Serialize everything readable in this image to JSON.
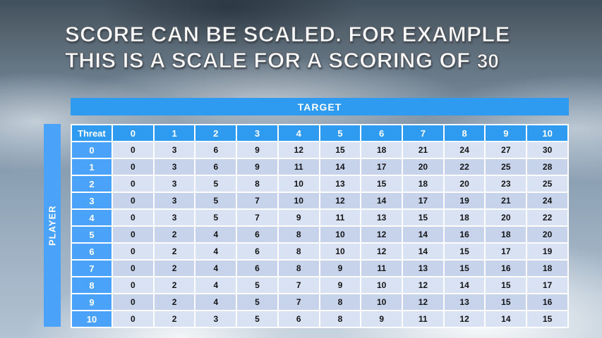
{
  "slide": {
    "title_line1": "SCORE CAN BE SCALED. FOR EXAMPLE",
    "title_line2": "THIS IS A SCALE FOR A SCORING OF",
    "title_number": "30"
  },
  "table": {
    "target_label": "TARGET",
    "player_label": "PLAYER",
    "threat_label": "Threat",
    "column_headers": [
      "0",
      "1",
      "2",
      "3",
      "4",
      "5",
      "6",
      "7",
      "8",
      "9",
      "10"
    ],
    "rows": [
      {
        "threat": "0",
        "values": [
          0,
          3,
          6,
          9,
          12,
          15,
          18,
          21,
          24,
          27,
          30
        ]
      },
      {
        "threat": "1",
        "values": [
          0,
          3,
          6,
          9,
          11,
          14,
          17,
          20,
          22,
          25,
          28
        ]
      },
      {
        "threat": "2",
        "values": [
          0,
          3,
          5,
          8,
          10,
          13,
          15,
          18,
          20,
          23,
          25
        ]
      },
      {
        "threat": "3",
        "values": [
          0,
          3,
          5,
          7,
          10,
          12,
          14,
          17,
          19,
          21,
          24
        ]
      },
      {
        "threat": "4",
        "values": [
          0,
          3,
          5,
          7,
          9,
          11,
          13,
          15,
          18,
          20,
          22
        ]
      },
      {
        "threat": "5",
        "values": [
          0,
          2,
          4,
          6,
          8,
          10,
          12,
          14,
          16,
          18,
          20
        ]
      },
      {
        "threat": "6",
        "values": [
          0,
          2,
          4,
          6,
          8,
          10,
          12,
          14,
          15,
          17,
          19
        ]
      },
      {
        "threat": "7",
        "values": [
          0,
          2,
          4,
          6,
          8,
          9,
          11,
          13,
          15,
          16,
          18
        ]
      },
      {
        "threat": "8",
        "values": [
          0,
          2,
          4,
          5,
          7,
          9,
          10,
          12,
          14,
          15,
          17
        ]
      },
      {
        "threat": "9",
        "values": [
          0,
          2,
          4,
          5,
          7,
          8,
          10,
          12,
          13,
          15,
          16
        ]
      },
      {
        "threat": "10",
        "values": [
          0,
          2,
          3,
          5,
          6,
          8,
          9,
          11,
          12,
          14,
          15
        ]
      }
    ]
  },
  "colors": {
    "header_blue": "#2e9bf0",
    "row_header_blue": "#4aa3f8",
    "band_light": "#d9e2f3",
    "band_dark": "#c6d3eb",
    "title_text": "#ffffff"
  }
}
